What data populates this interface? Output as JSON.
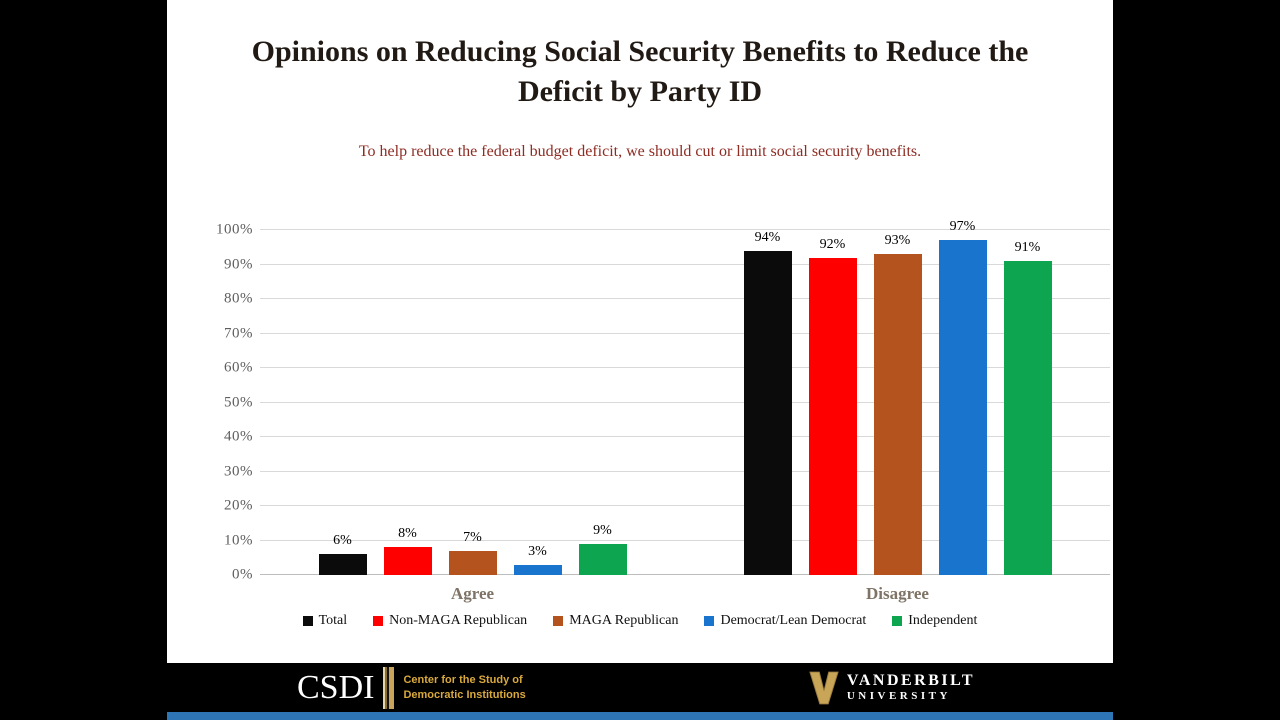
{
  "slide": {
    "title": "Opinions on Reducing Social Security Benefits to Reduce the Deficit by Party ID",
    "subtitle": "To help reduce the federal budget deficit, we should cut or limit social security benefits."
  },
  "chart_data": {
    "type": "bar",
    "categories": [
      "Agree",
      "Disagree"
    ],
    "series": [
      {
        "name": "Total",
        "color": "#0b0b0b",
        "values": [
          6,
          94
        ]
      },
      {
        "name": "Non-MAGA Republican",
        "color": "#fe0000",
        "values": [
          8,
          92
        ]
      },
      {
        "name": "MAGA Republican",
        "color": "#b4531d",
        "values": [
          7,
          93
        ]
      },
      {
        "name": "Democrat/Lean Democrat",
        "color": "#1874cd",
        "values": [
          3,
          97
        ]
      },
      {
        "name": "Independent",
        "color": "#0da550",
        "values": [
          9,
          91
        ]
      }
    ],
    "ylim": [
      0,
      100
    ],
    "ytick_step": 10,
    "ytick_labels": [
      "0%",
      "10%",
      "20%",
      "30%",
      "40%",
      "50%",
      "60%",
      "70%",
      "80%",
      "90%",
      "100%"
    ],
    "grid": true,
    "legend_position": "bottom",
    "data_label_format": "percent"
  },
  "footer": {
    "csdi_acronym": "CSDI",
    "csdi_name_line1": "Center for the Study of",
    "csdi_name_line2": "Democratic Institutions",
    "vanderbilt_line1": "VANDERBILT",
    "vanderbilt_line2": "UNIVERSITY"
  },
  "theme": {
    "title_color": "#211a14",
    "subtitle_color": "#8e2b22",
    "axis_label_color": "#5e5e5e",
    "category_label_color": "#7e7366",
    "gridline_color": "#d9d9d9",
    "footer_background": "#000000",
    "footer_gold": "#d9a93e",
    "bottom_strip_blue": "#2e75b6"
  }
}
